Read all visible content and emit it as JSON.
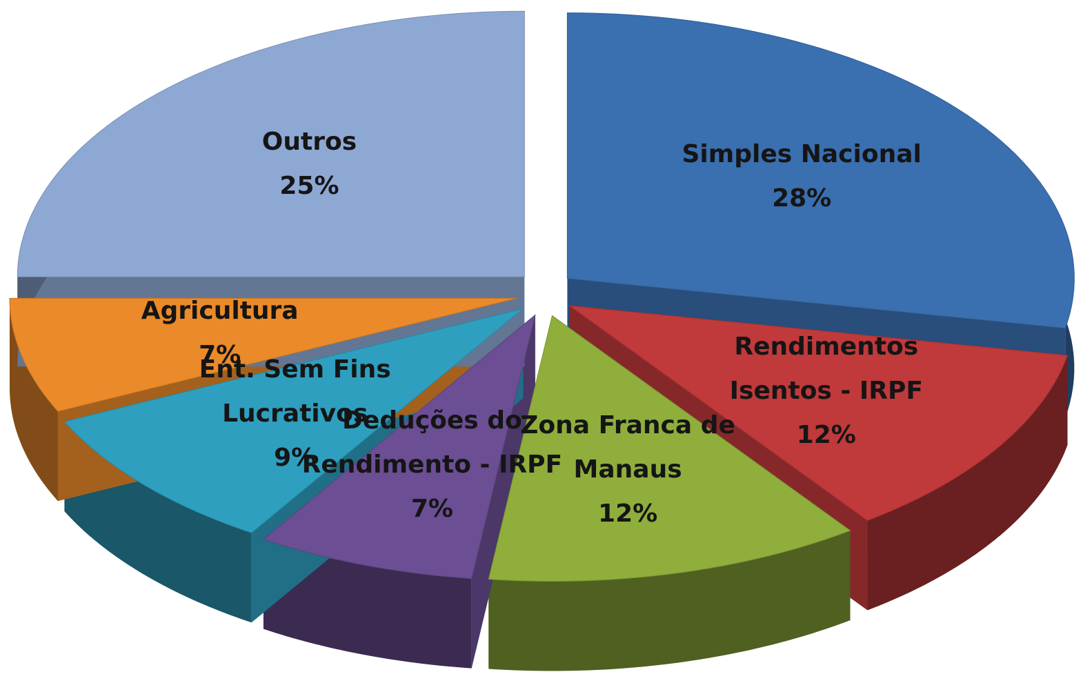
{
  "chart_data": {
    "type": "pie",
    "categories": [
      "Simples Nacional",
      "Rendimentos Isentos - IRPF",
      "Zona Franca de Manaus",
      "Deduções do Rendimento - IRPF",
      "Ent. Sem Fins Lucrativos",
      "Agricultura",
      "Outros"
    ],
    "values": [
      28,
      12,
      12,
      7,
      9,
      7,
      25
    ],
    "value_labels": [
      "28%",
      "12%",
      "12%",
      "7%",
      "9%",
      "7%",
      "25%"
    ],
    "colors": [
      "#3a6fb0",
      "#c0393b",
      "#8fae3c",
      "#6b4e94",
      "#2e9fbf",
      "#ea8a2a",
      "#8ea8d4"
    ]
  }
}
